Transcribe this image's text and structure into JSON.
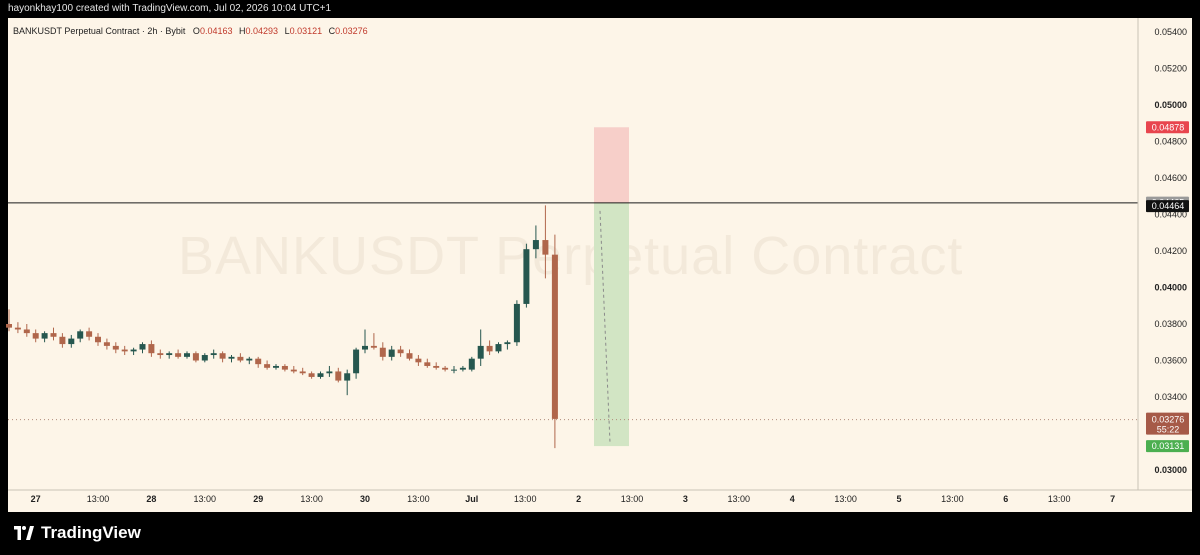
{
  "header": {
    "credit": "hayonkhay100 created with TradingView.com, Jul 02, 2026 10:04 UTC+1"
  },
  "symbol": {
    "name": "BANKUSDT Perpetual Contract · 2h · Bybit",
    "o_label": "O",
    "o": "0.04163",
    "h_label": "H",
    "h": "0.04293",
    "l_label": "L",
    "l": "0.03121",
    "c_label": "C",
    "c": "0.03276"
  },
  "watermark": "BANKUSDT Perpetual Contract",
  "brand": {
    "name": "TradingView"
  },
  "colors": {
    "background": "#fdf5e8",
    "up": "#26574f",
    "down": "#b0664b",
    "stop_zone": "#f7cfc9",
    "target_zone": "#d2e5c4",
    "stop_label": "#e8454e",
    "target_label": "#4caf50",
    "last_label": "#a65a48"
  },
  "chart_data": {
    "type": "candlestick",
    "timeframe": "2h",
    "ylim": [
      0.03,
      0.0545
    ],
    "y_ticks": [
      "0.05400",
      "0.05200",
      "0.05000",
      "0.04800",
      "0.04600",
      "0.04400",
      "0.04200",
      "0.04000",
      "0.03800",
      "0.03600",
      "0.03400",
      "0.03000"
    ],
    "bold_ticks": [
      "0.05000",
      "0.04000",
      "0.03000"
    ],
    "x_ticks": [
      {
        "label": "27",
        "i": 4
      },
      {
        "label": "13:00",
        "i": 10
      },
      {
        "label": "28",
        "i": 16
      },
      {
        "label": "13:00",
        "i": 22
      },
      {
        "label": "29",
        "i": 28
      },
      {
        "label": "13:00",
        "i": 34
      },
      {
        "label": "30",
        "i": 40
      },
      {
        "label": "13:00",
        "i": 46
      },
      {
        "label": "Jul",
        "i": 52
      },
      {
        "label": "13:00",
        "i": 58
      },
      {
        "label": "2",
        "i": 64
      },
      {
        "label": "13:00",
        "i": 70
      },
      {
        "label": "3",
        "i": 76
      },
      {
        "label": "13:00",
        "i": 82
      },
      {
        "label": "4",
        "i": 88
      },
      {
        "label": "13:00",
        "i": 94
      },
      {
        "label": "5",
        "i": 100
      },
      {
        "label": "13:00",
        "i": 106
      },
      {
        "label": "6",
        "i": 112
      },
      {
        "label": "13:00",
        "i": 118
      },
      {
        "label": "7",
        "i": 124
      }
    ],
    "candles": [
      [
        0.038,
        0.0388,
        0.0376,
        0.0378
      ],
      [
        0.0378,
        0.0381,
        0.0375,
        0.0377
      ],
      [
        0.0377,
        0.038,
        0.0373,
        0.0375
      ],
      [
        0.0375,
        0.0377,
        0.037,
        0.0372
      ],
      [
        0.0372,
        0.0376,
        0.037,
        0.0375
      ],
      [
        0.0375,
        0.0378,
        0.0371,
        0.0373
      ],
      [
        0.0373,
        0.0375,
        0.0367,
        0.0369
      ],
      [
        0.0369,
        0.0374,
        0.0367,
        0.0372
      ],
      [
        0.0372,
        0.0377,
        0.037,
        0.0376
      ],
      [
        0.0376,
        0.0378,
        0.0371,
        0.0373
      ],
      [
        0.0373,
        0.0375,
        0.0368,
        0.037
      ],
      [
        0.037,
        0.0372,
        0.0366,
        0.0368
      ],
      [
        0.0368,
        0.037,
        0.0364,
        0.0366
      ],
      [
        0.0366,
        0.0368,
        0.0363,
        0.0365
      ],
      [
        0.0365,
        0.0367,
        0.0363,
        0.0366
      ],
      [
        0.0366,
        0.037,
        0.0364,
        0.0369
      ],
      [
        0.0369,
        0.0371,
        0.0362,
        0.0364
      ],
      [
        0.0364,
        0.0366,
        0.0361,
        0.0363
      ],
      [
        0.0363,
        0.0365,
        0.0361,
        0.0364
      ],
      [
        0.0364,
        0.0366,
        0.0361,
        0.0362
      ],
      [
        0.0362,
        0.0365,
        0.0361,
        0.0364
      ],
      [
        0.0364,
        0.0365,
        0.0359,
        0.036
      ],
      [
        0.036,
        0.0364,
        0.0359,
        0.0363
      ],
      [
        0.0363,
        0.0366,
        0.0361,
        0.0364
      ],
      [
        0.0364,
        0.0365,
        0.0359,
        0.0361
      ],
      [
        0.0361,
        0.0363,
        0.0359,
        0.0362
      ],
      [
        0.0362,
        0.0364,
        0.0359,
        0.036
      ],
      [
        0.036,
        0.0362,
        0.0358,
        0.0361
      ],
      [
        0.0361,
        0.0362,
        0.0356,
        0.0358
      ],
      [
        0.0358,
        0.036,
        0.0355,
        0.0356
      ],
      [
        0.0356,
        0.0358,
        0.0355,
        0.0357
      ],
      [
        0.0357,
        0.0358,
        0.0354,
        0.0355
      ],
      [
        0.0355,
        0.0357,
        0.0353,
        0.0354
      ],
      [
        0.0354,
        0.0356,
        0.0352,
        0.0353
      ],
      [
        0.0353,
        0.0354,
        0.035,
        0.0351
      ],
      [
        0.0351,
        0.0354,
        0.035,
        0.0353
      ],
      [
        0.0353,
        0.0357,
        0.0351,
        0.0354
      ],
      [
        0.0354,
        0.0356,
        0.0348,
        0.0349
      ],
      [
        0.0349,
        0.0355,
        0.0341,
        0.0353
      ],
      [
        0.0353,
        0.0367,
        0.035,
        0.0366
      ],
      [
        0.0366,
        0.0377,
        0.0364,
        0.0368
      ],
      [
        0.0368,
        0.0375,
        0.0366,
        0.0367
      ],
      [
        0.0367,
        0.037,
        0.036,
        0.0362
      ],
      [
        0.0362,
        0.0368,
        0.036,
        0.0366
      ],
      [
        0.0366,
        0.0368,
        0.0362,
        0.0364
      ],
      [
        0.0364,
        0.0366,
        0.036,
        0.0361
      ],
      [
        0.0361,
        0.0363,
        0.0357,
        0.0359
      ],
      [
        0.0359,
        0.0361,
        0.0356,
        0.0357
      ],
      [
        0.0357,
        0.0359,
        0.0355,
        0.0356
      ],
      [
        0.0356,
        0.0357,
        0.0354,
        0.0355
      ],
      [
        0.0355,
        0.0357,
        0.0353,
        0.0355
      ],
      [
        0.0355,
        0.0357,
        0.0354,
        0.0356
      ],
      [
        0.0355,
        0.0362,
        0.0354,
        0.0361
      ],
      [
        0.0361,
        0.0377,
        0.0357,
        0.0368
      ],
      [
        0.0368,
        0.0371,
        0.0363,
        0.0365
      ],
      [
        0.0365,
        0.037,
        0.0364,
        0.0369
      ],
      [
        0.0369,
        0.0371,
        0.0366,
        0.037
      ],
      [
        0.037,
        0.0393,
        0.0368,
        0.0391
      ],
      [
        0.0391,
        0.0424,
        0.0389,
        0.0421
      ],
      [
        0.0421,
        0.0434,
        0.0416,
        0.0426
      ],
      [
        0.0426,
        0.0445,
        0.0405,
        0.0418
      ],
      [
        0.0418,
        0.0429,
        0.0312,
        0.0328
      ]
    ],
    "candle_x_index_start": 0,
    "horizontal_line": 0.04464,
    "last_price": 0.03276,
    "position": {
      "type": "short",
      "entry": 0.04465,
      "stop": 0.04878,
      "target": 0.03131,
      "start_index": 58,
      "end_index": 62
    },
    "price_labels": {
      "stop": "0.04878",
      "entry": "0.04465",
      "line": "0.04464",
      "last": "0.03276",
      "countdown": "55:22",
      "target": "0.03131"
    }
  }
}
